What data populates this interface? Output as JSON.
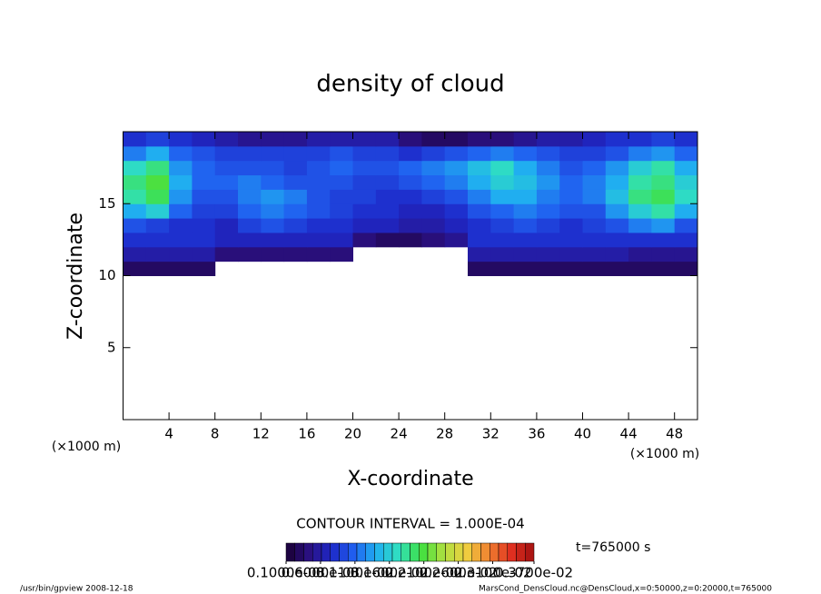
{
  "chart_data": {
    "type": "heatmap",
    "title": "density of cloud",
    "xlabel": "X-coordinate",
    "ylabel": "Z-coordinate",
    "xunit": "(×1000 m)",
    "contour_text": "CONTOUR INTERVAL = 1.000E-04",
    "time_text": "t=765000 s",
    "footer_left": "/usr/bin/gpview   2008-12-18",
    "footer_right": "MarsCond_DensCloud.nc@DensCloud,x=0:50000,z=0:20000,t=765000",
    "xlim": [
      0,
      50
    ],
    "ylim": [
      0,
      20
    ],
    "xticks": [
      4,
      8,
      12,
      16,
      20,
      24,
      28,
      32,
      36,
      40,
      44,
      48
    ],
    "yticks": [
      5,
      10,
      15
    ],
    "xbins": [
      0,
      2,
      4,
      6,
      8,
      10,
      12,
      14,
      16,
      18,
      20,
      22,
      24,
      26,
      28,
      30,
      32,
      34,
      36,
      38,
      40,
      42,
      44,
      46,
      48,
      50
    ],
    "zbins": [
      10,
      11,
      12,
      13,
      14,
      15,
      16,
      17,
      18,
      19,
      20
    ],
    "clim": [
      0.0001,
      0.0037
    ],
    "colormap": [
      "#1a0033",
      "#2a1080",
      "#1e28c8",
      "#2060f0",
      "#20b0f0",
      "#30e0c0",
      "#40e040",
      "#b0e040",
      "#f0d040",
      "#f08030",
      "#e03020",
      "#a01010"
    ],
    "colorbar_ticks": [
      {
        "value": 0.0001,
        "label": "0.1000e-03"
      },
      {
        "value": 0.0006,
        "label": "0.6000e-03"
      },
      {
        "value": 0.0011,
        "label": "0.1100e-02"
      },
      {
        "value": 0.0016,
        "label": "0.1600e-02"
      },
      {
        "value": 0.0021,
        "label": "0.2100e-02"
      },
      {
        "value": 0.0026,
        "label": "0.2600e-02"
      },
      {
        "value": 0.0031,
        "label": "0.3100e-02"
      },
      {
        "value": 0.0037,
        "label": "0.3700e-02"
      }
    ],
    "z": [
      [
        0.0003,
        0.0003,
        0.0003,
        0.0003,
        null,
        null,
        null,
        null,
        null,
        null,
        null,
        null,
        null,
        null,
        null,
        0.0003,
        0.0003,
        0.0003,
        0.0003,
        0.0003,
        0.0003,
        0.0003,
        0.0003,
        0.0003,
        0.0003
      ],
      [
        0.0006,
        0.0006,
        0.0006,
        0.0006,
        0.0004,
        0.0004,
        0.0004,
        0.0004,
        0.0004,
        0.0004,
        null,
        null,
        null,
        null,
        null,
        0.0006,
        0.0006,
        0.0006,
        0.0006,
        0.0006,
        0.0006,
        0.0006,
        0.0005,
        0.0005,
        0.0005
      ],
      [
        0.0008,
        0.0008,
        0.0008,
        0.0008,
        0.0007,
        0.0007,
        0.0007,
        0.0007,
        0.0007,
        0.0007,
        0.0004,
        0.0003,
        0.0003,
        0.0004,
        0.0005,
        0.0008,
        0.0008,
        0.0008,
        0.0008,
        0.0008,
        0.0008,
        0.0008,
        0.0008,
        0.0008,
        0.0008
      ],
      [
        0.001,
        0.0009,
        0.0008,
        0.0008,
        0.0007,
        0.0009,
        0.001,
        0.0009,
        0.0008,
        0.0008,
        0.0007,
        0.0007,
        0.0006,
        0.0006,
        0.0007,
        0.0008,
        0.0009,
        0.001,
        0.0009,
        0.0008,
        0.0009,
        0.001,
        0.0012,
        0.0013,
        0.001
      ],
      [
        0.0014,
        0.0016,
        0.0011,
        0.0009,
        0.0009,
        0.0011,
        0.0012,
        0.0011,
        0.001,
        0.0009,
        0.0008,
        0.0008,
        0.0007,
        0.0007,
        0.0008,
        0.001,
        0.0011,
        0.0012,
        0.0011,
        0.001,
        0.001,
        0.0013,
        0.0016,
        0.0018,
        0.0014
      ],
      [
        0.0018,
        0.002,
        0.0013,
        0.001,
        0.001,
        0.0012,
        0.0013,
        0.0012,
        0.001,
        0.0009,
        0.0009,
        0.0008,
        0.0008,
        0.0009,
        0.001,
        0.0012,
        0.0014,
        0.0014,
        0.0012,
        0.0011,
        0.0012,
        0.0015,
        0.0019,
        0.002,
        0.0017
      ],
      [
        0.0019,
        0.0021,
        0.0014,
        0.0011,
        0.0011,
        0.0012,
        0.0011,
        0.001,
        0.001,
        0.001,
        0.0009,
        0.0009,
        0.001,
        0.0011,
        0.0012,
        0.0014,
        0.0016,
        0.0015,
        0.0013,
        0.0011,
        0.0012,
        0.0014,
        0.0018,
        0.0019,
        0.0016
      ],
      [
        0.0017,
        0.0019,
        0.0013,
        0.0011,
        0.001,
        0.001,
        0.001,
        0.0009,
        0.001,
        0.0011,
        0.001,
        0.001,
        0.0011,
        0.0012,
        0.0013,
        0.0015,
        0.0017,
        0.0014,
        0.0012,
        0.001,
        0.0011,
        0.0013,
        0.0016,
        0.0018,
        0.0014
      ],
      [
        0.0012,
        0.0014,
        0.0011,
        0.001,
        0.0009,
        0.0009,
        0.0009,
        0.0009,
        0.0009,
        0.001,
        0.0009,
        0.0009,
        0.0008,
        0.0009,
        0.001,
        0.0011,
        0.0012,
        0.0011,
        0.001,
        0.0009,
        0.0009,
        0.001,
        0.0012,
        0.0013,
        0.0011
      ],
      [
        0.0008,
        0.0009,
        0.0008,
        0.0007,
        0.0006,
        0.0005,
        0.0005,
        0.0005,
        0.0006,
        0.0006,
        0.0006,
        0.0006,
        0.0004,
        0.0003,
        0.0003,
        0.0004,
        0.0004,
        0.0005,
        0.0006,
        0.0006,
        0.0007,
        0.0008,
        0.0008,
        0.0009,
        0.0008
      ]
    ]
  }
}
